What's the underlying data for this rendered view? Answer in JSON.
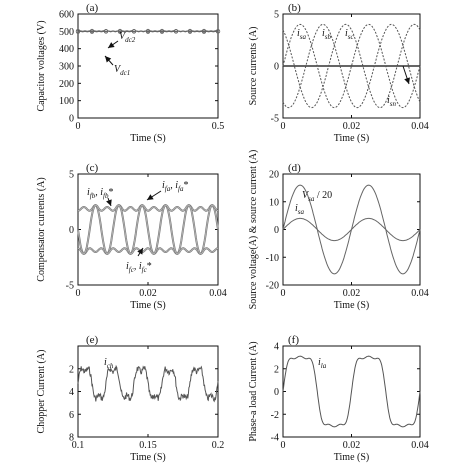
{
  "chart_data": [
    {
      "type": "line",
      "panel_label": "(a)",
      "xlabel": "Time (S)",
      "ylabel": "Capacitor voltages (V)",
      "xlim": [
        0,
        0.5
      ],
      "ylim": [
        0,
        600
      ],
      "xticks": [
        0,
        0.5
      ],
      "xtick_labels": [
        "0",
        "0.5"
      ],
      "yticks": [
        0,
        100,
        200,
        300,
        400,
        500,
        600
      ],
      "ytick_labels": [
        "0",
        "100",
        "200",
        "300",
        "400",
        "500",
        "600"
      ],
      "series": [
        {
          "name": "Vdc2",
          "x": [
            0,
            0.05,
            0.1,
            0.15,
            0.2,
            0.25,
            0.3,
            0.35,
            0.4,
            0.45,
            0.5
          ],
          "values": [
            502,
            502,
            501,
            502,
            501,
            502,
            502,
            501,
            502,
            502,
            501
          ]
        },
        {
          "name": "Vdc1",
          "x": [
            0,
            0.05,
            0.1,
            0.15,
            0.2,
            0.25,
            0.3,
            0.35,
            0.4,
            0.45,
            0.5
          ],
          "values": [
            498,
            498,
            499,
            498,
            499,
            498,
            498,
            499,
            498,
            498,
            499
          ]
        }
      ],
      "annotations": [
        {
          "text": "V",
          "sub": "dc2"
        },
        {
          "text": "V",
          "sub": "dc1"
        }
      ]
    },
    {
      "type": "line",
      "panel_label": "(b)",
      "xlabel": "Time (S)",
      "ylabel": "Source currents (A)",
      "xlim": [
        0,
        0.04
      ],
      "ylim": [
        -5,
        5
      ],
      "xticks": [
        0,
        0.02,
        0.04
      ],
      "xtick_labels": [
        "0",
        "0.02",
        "0.04"
      ],
      "yticks": [
        -5,
        0,
        5
      ],
      "ytick_labels": [
        "-5",
        "0",
        "5"
      ],
      "series": [
        {
          "name": "isa",
          "amplitude": 4,
          "frequency_hz": 50,
          "phase_deg": 0
        },
        {
          "name": "isb",
          "amplitude": 4,
          "frequency_hz": 50,
          "phase_deg": -120
        },
        {
          "name": "isc",
          "amplitude": 4,
          "frequency_hz": 50,
          "phase_deg": 120
        },
        {
          "name": "isn",
          "constant": 0
        }
      ],
      "annotations": [
        {
          "text": "i",
          "sub": "sa"
        },
        {
          "text": "i",
          "sub": "sb"
        },
        {
          "text": "i",
          "sub": "sc"
        },
        {
          "text": "i",
          "sub": "sn"
        }
      ]
    },
    {
      "type": "line",
      "panel_label": "(c)",
      "xlabel": "Time (S)",
      "ylabel": "Compensator currents (A)",
      "xlim": [
        0,
        0.04
      ],
      "ylim": [
        -5,
        5
      ],
      "xticks": [
        0,
        0.02,
        0.04
      ],
      "xtick_labels": [
        "0",
        "0.02",
        "0.04"
      ],
      "yticks": [
        -5,
        0,
        5
      ],
      "ytick_labels": [
        "-5",
        "0",
        "5"
      ],
      "series": [
        {
          "name": "ifa",
          "amplitude": 2.8,
          "frequency_hz": 50,
          "phase_deg": 180,
          "harmonic": "square-like"
        },
        {
          "name": "ifb",
          "amplitude": 2.8,
          "frequency_hz": 50,
          "phase_deg": 60,
          "harmonic": "square-like"
        },
        {
          "name": "ifc",
          "amplitude": 2.8,
          "frequency_hz": 50,
          "phase_deg": -60,
          "harmonic": "square-like"
        }
      ],
      "annotations": [
        {
          "text": "i",
          "sub": "fb",
          "text2": ", i",
          "sub2": "fb",
          "tail": "*"
        },
        {
          "text": "i",
          "sub": "fa",
          "text2": ", i",
          "sub2": "fa",
          "tail": "*"
        },
        {
          "text": "i",
          "sub": "fc",
          "text2": ", i",
          "sub2": "fc",
          "tail": "*"
        }
      ]
    },
    {
      "type": "line",
      "panel_label": "(d)",
      "xlabel": "Time (S)",
      "ylabel": "Source voltage(A) & source current (A)",
      "xlim": [
        0,
        0.04
      ],
      "ylim": [
        -20,
        20
      ],
      "xticks": [
        0,
        0.02,
        0.04
      ],
      "xtick_labels": [
        "0",
        "0.02",
        "0.04"
      ],
      "yticks": [
        -20,
        -10,
        0,
        10,
        20
      ],
      "ytick_labels": [
        "-20",
        "-10",
        "0",
        "10",
        "20"
      ],
      "series": [
        {
          "name": "Vsa / 20",
          "amplitude": 16,
          "frequency_hz": 50,
          "phase_deg": 0
        },
        {
          "name": "isa",
          "amplitude": 4,
          "frequency_hz": 50,
          "phase_deg": 0
        }
      ],
      "annotations": [
        {
          "text": "V",
          "sub": "sa",
          "tail": " / 20"
        },
        {
          "text": "i",
          "sub": "sa"
        }
      ]
    },
    {
      "type": "line",
      "panel_label": "(e)",
      "xlabel": "Time (S)",
      "ylabel": "Chopper Current (A)",
      "xlim": [
        0.1,
        0.2
      ],
      "ylim": [
        8,
        0
      ],
      "xticks": [
        0.1,
        0.15,
        0.2
      ],
      "xtick_labels": [
        "0.1",
        "0.15",
        "0.2"
      ],
      "yticks": [
        0,
        2,
        4,
        6,
        8
      ],
      "ytick_labels": [
        "",
        "2",
        "4",
        "6",
        "8"
      ],
      "series": [
        {
          "name": "ich",
          "mean": 3.3,
          "ripple_amplitude": 1.6,
          "ripple_frequency_hz": 50,
          "noise": true
        }
      ],
      "annotations": [
        {
          "text": "i",
          "sub": "ch"
        }
      ]
    },
    {
      "type": "line",
      "panel_label": "(f)",
      "xlabel": "Time (S)",
      "ylabel": "Phase-a load Current (A)",
      "xlim": [
        0,
        0.04
      ],
      "ylim": [
        -4,
        4
      ],
      "xticks": [
        0,
        0.02,
        0.04
      ],
      "xtick_labels": [
        "0",
        "0.02",
        "0.04"
      ],
      "yticks": [
        -4,
        -2,
        0,
        2,
        4
      ],
      "ytick_labels": [
        "-4",
        "-2",
        "0",
        "2",
        "4"
      ],
      "series": [
        {
          "name": "ila",
          "amplitude": 3.8,
          "frequency_hz": 50,
          "phase_deg": 0,
          "harmonic": "quasi-square"
        }
      ],
      "annotations": [
        {
          "text": "i",
          "sub": "la"
        }
      ]
    }
  ]
}
